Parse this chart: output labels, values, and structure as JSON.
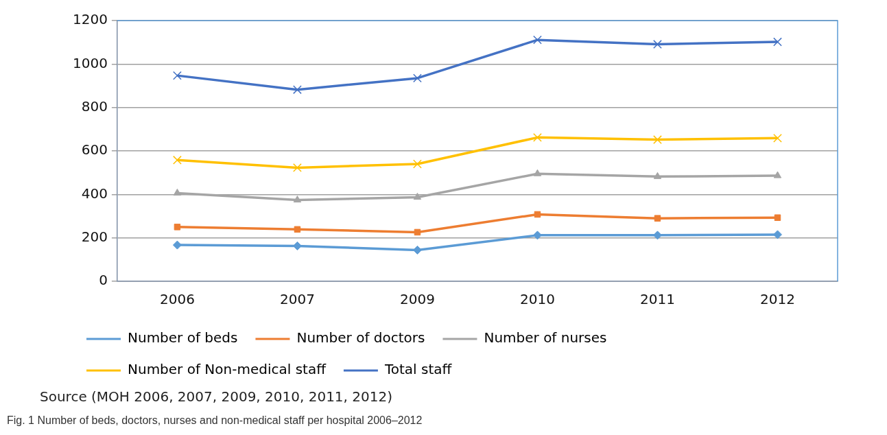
{
  "chart_data": {
    "type": "line",
    "categories": [
      "2006",
      "2007",
      "2009",
      "2010",
      "2011",
      "2012"
    ],
    "series": [
      {
        "name": "Number of beds",
        "color": "#5b9bd5",
        "marker": "diamond",
        "values": [
          167,
          163,
          144,
          212,
          212,
          215
        ]
      },
      {
        "name": "Number of doctors",
        "color": "#ed7d31",
        "marker": "square",
        "values": [
          250,
          239,
          226,
          308,
          290,
          293
        ]
      },
      {
        "name": "Number of nurses",
        "color": "#a5a5a5",
        "marker": "triangle",
        "values": [
          406,
          374,
          387,
          495,
          482,
          486
        ]
      },
      {
        "name": "Number of Non-medical staff",
        "color": "#ffc000",
        "marker": "cross",
        "values": [
          558,
          523,
          540,
          662,
          652,
          659
        ]
      },
      {
        "name": "Total staff",
        "color": "#4472c4",
        "marker": "cross",
        "values": [
          947,
          882,
          935,
          1111,
          1091,
          1102
        ]
      }
    ],
    "ylim": [
      0,
      1200
    ],
    "yticks": [
      0,
      200,
      400,
      600,
      800,
      1000,
      1200
    ],
    "grid": "y",
    "legend": "bottom",
    "line_style": "solid",
    "annotations": [
      "Source (MOH 2006, 2007, 2009, 2010, 2011, 2012)",
      "Fig. 1  Number of beds, doctors, nurses and non-medical staff per hospital 2006–2012"
    ]
  }
}
